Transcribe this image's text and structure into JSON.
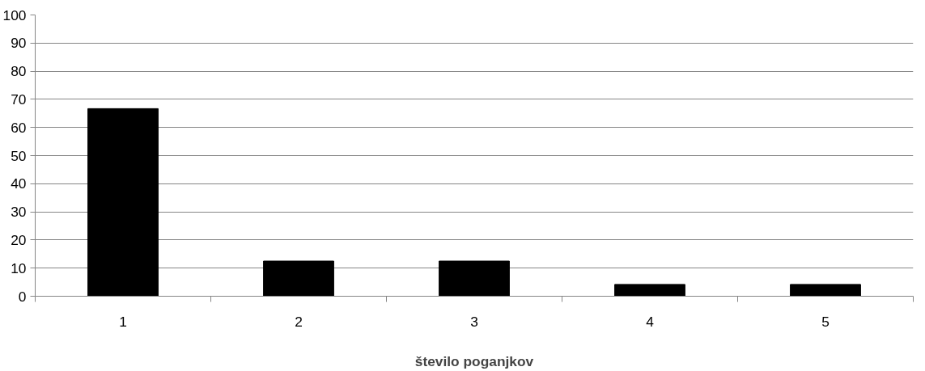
{
  "chart_data": {
    "type": "bar",
    "xlabel": "število poganjkov",
    "categories": [
      "1",
      "2",
      "3",
      "4",
      "5"
    ],
    "values": [
      66.7,
      12.5,
      12.5,
      4.2,
      4.2
    ],
    "color": "#000000",
    "ylim": [
      0,
      100
    ],
    "yticks": [
      0,
      10,
      20,
      30,
      40,
      50,
      60,
      70,
      80,
      90,
      100
    ],
    "grid": "y"
  }
}
